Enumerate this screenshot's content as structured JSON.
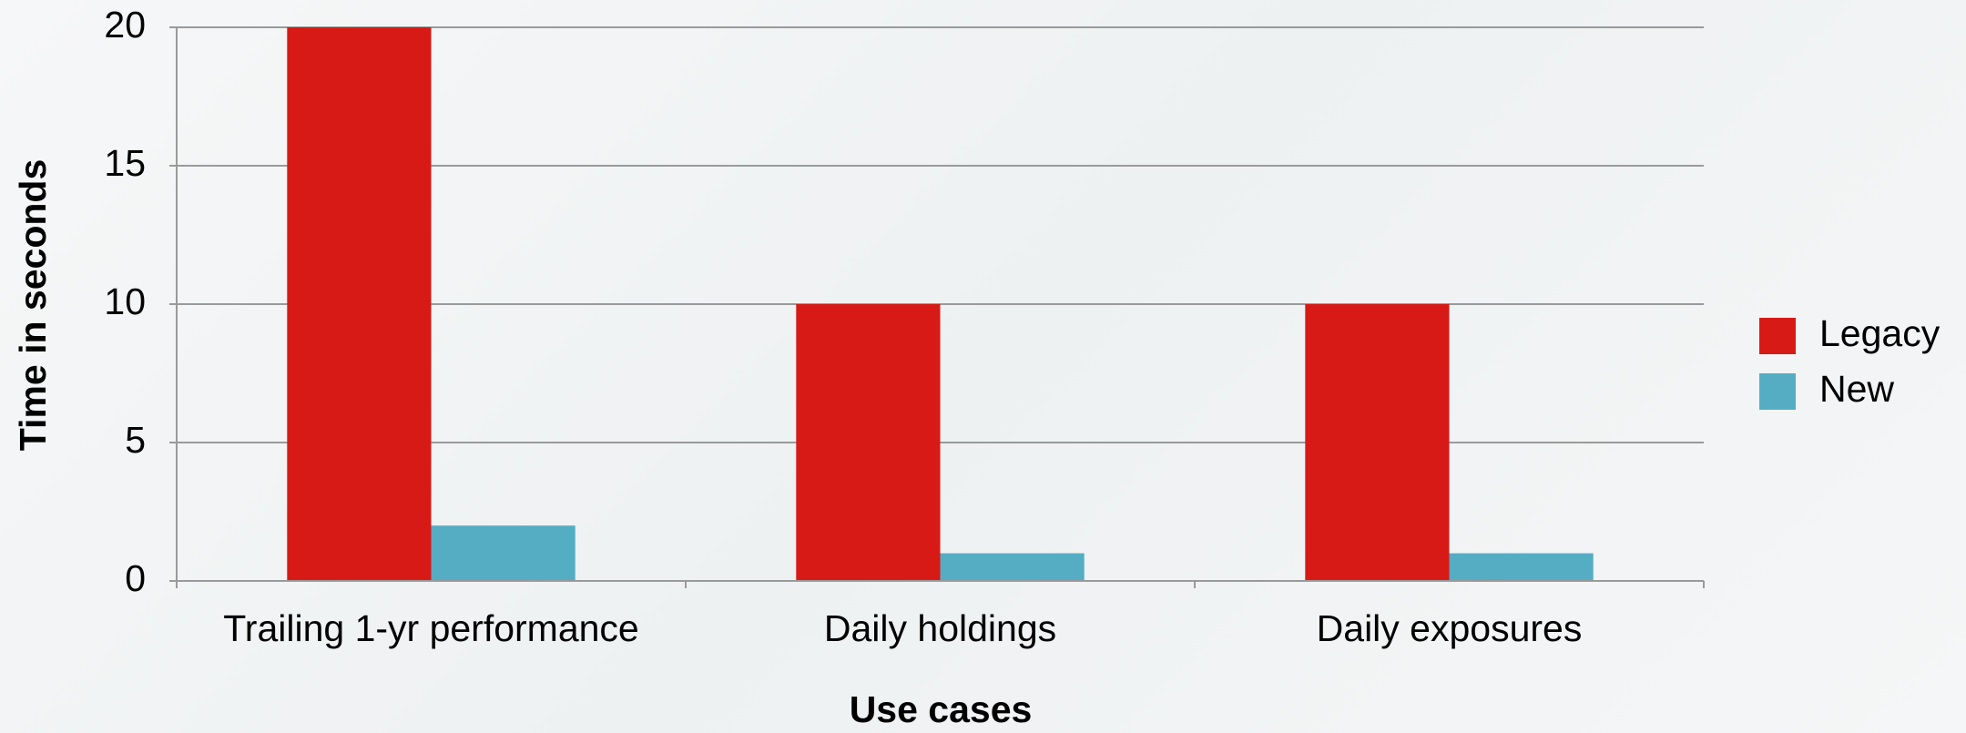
{
  "chart_data": {
    "type": "bar",
    "categories": [
      "Trailing 1-yr performance",
      "Daily holdings",
      "Daily exposures"
    ],
    "series": [
      {
        "name": "Legacy",
        "color": "#d71a16",
        "values": [
          20,
          10,
          10
        ]
      },
      {
        "name": "New",
        "color": "#55adc4",
        "values": [
          2,
          1,
          1
        ]
      }
    ],
    "x_label": "Use cases",
    "y_label": "Time in seconds",
    "ylim": [
      0,
      20
    ],
    "yticks": [
      0,
      5,
      10,
      15,
      20
    ],
    "grid": true,
    "legend": "right"
  }
}
